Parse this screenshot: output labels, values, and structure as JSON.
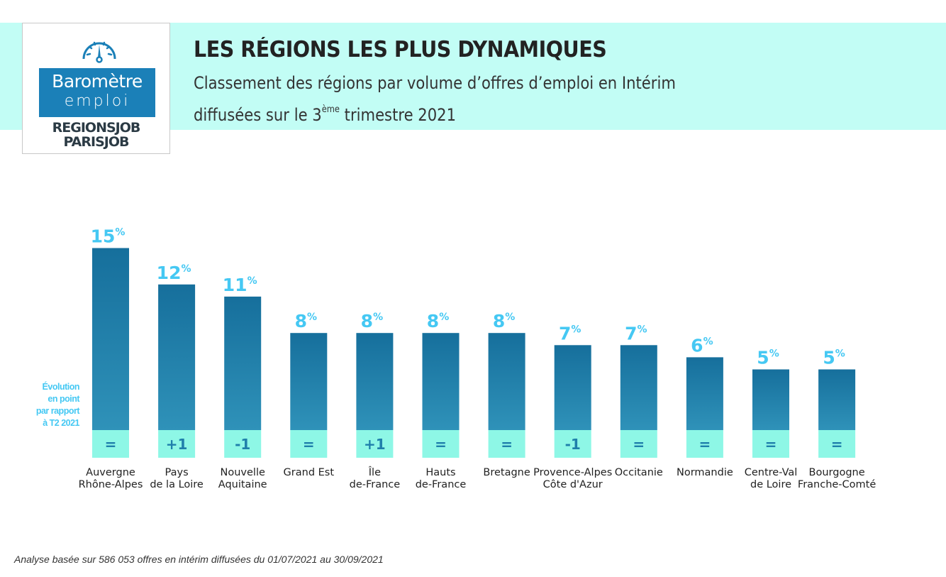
{
  "header": {
    "title": "LES RÉGIONS LES PLUS DYNAMIQUES",
    "subtitle_line1": "Classement des régions par volume d’offres d’emploi en Intérim",
    "subtitle_line2_pre": "diffusées sur le 3",
    "subtitle_line2_sup": "ème",
    "subtitle_line2_post": " trimestre 2021"
  },
  "logo": {
    "icon": "gauge-icon",
    "line1": "Baromètre",
    "line2": "emploi",
    "brand1": "REGIONSJOB",
    "brand2": "PARISJOB"
  },
  "colors": {
    "banner": "#c2fdf5",
    "bar_top": "#166f9c",
    "bar_bottom": "#2f92b9",
    "evolution_box": "#8ef7e6",
    "evolution_text": "#1f7fab",
    "value_label": "#45c8f3",
    "logo_blue": "#1b80b8"
  },
  "legend_note": [
    "Évolution",
    "en point",
    "par rapport",
    "à T2 2021"
  ],
  "footnote": "Analyse basée sur 586 053 offres en intérim diffusées du 01/07/2021 au 30/09/2021",
  "chart_data": {
    "type": "bar",
    "title": "LES RÉGIONS LES PLUS DYNAMIQUES",
    "subtitle": "Classement des régions par volume d’offres d’emploi en Intérim diffusées sur le 3ème trimestre 2021",
    "xlabel": "",
    "ylabel": "",
    "unit": "%",
    "ylim": [
      0,
      15
    ],
    "grid": false,
    "categories": [
      [
        "Auvergne",
        "Rhône-Alpes"
      ],
      [
        "Pays",
        "de la Loire"
      ],
      [
        "Nouvelle",
        "Aquitaine"
      ],
      [
        "Grand Est"
      ],
      [
        "Île",
        "de-France"
      ],
      [
        "Hauts",
        "de-France"
      ],
      [
        "Bretagne"
      ],
      [
        "Provence-Alpes",
        "Côte d'Azur"
      ],
      [
        "Occitanie"
      ],
      [
        "Normandie"
      ],
      [
        "Centre-Val",
        "de Loire"
      ],
      [
        "Bourgogne",
        "Franche-Comté"
      ]
    ],
    "values": [
      15,
      12,
      11,
      8,
      8,
      8,
      8,
      7,
      7,
      6,
      5,
      5
    ],
    "evolution_label": "Évolution en point par rapport à T2 2021",
    "evolution": [
      "=",
      "+1",
      "-1",
      "=",
      "+1",
      "=",
      "=",
      "-1",
      "=",
      "=",
      "=",
      "="
    ]
  }
}
